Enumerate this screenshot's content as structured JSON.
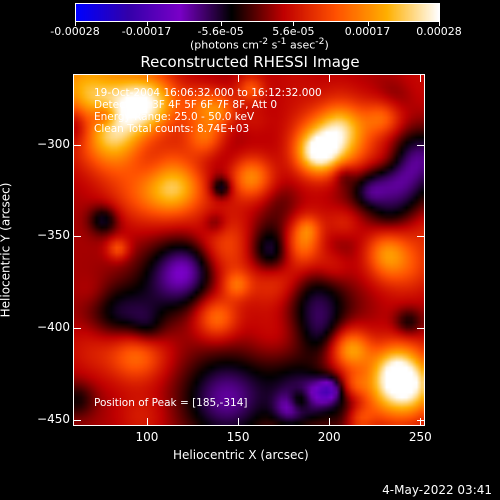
{
  "colorbar": {
    "tick_labels": [
      "-0.00028",
      "-0.00017",
      "-5.6e-05",
      "5.6e-05",
      "0.00017",
      "0.00028"
    ],
    "tick_values": [
      -0.00028,
      -0.00017,
      -5.6e-05,
      5.6e-05,
      0.00017,
      0.00028
    ],
    "range": [
      -0.00028,
      0.00028
    ],
    "units_html": "(photons cm<sup>-2</sup> s<sup>-1</sup> asec<sup>-2</sup>)",
    "colormap": [
      "#0000ff",
      "#3300aa",
      "#7a00c8",
      "#000000",
      "#c00000",
      "#ff5000",
      "#ffb000",
      "#ffffff"
    ]
  },
  "plot": {
    "title": "Reconstructed RHESSI Image",
    "xlabel": "Heliocentric X (arcsec)",
    "ylabel": "Heliocentric Y (arcsec)",
    "xlim": [
      60,
      252
    ],
    "ylim": [
      -453,
      -262
    ],
    "xticks": [
      100,
      150,
      200,
      250
    ],
    "yticks": [
      -300,
      -350,
      -400,
      -450
    ],
    "annotations": [
      "19-Oct-2004 16:06:32.000 to 16:12:32.000",
      "Detectors: 3F 4F 5F 6F 7F 8F, Att 0",
      "Energy Range: 25.0 - 50.0 keV",
      "Clean     Total counts: 8.74E+03"
    ],
    "peak_label": "Position of Peak = [185,-314]",
    "peak": [
      185,
      -314
    ]
  },
  "footer": {
    "timestamp": "4-May-2022 03:41"
  }
}
